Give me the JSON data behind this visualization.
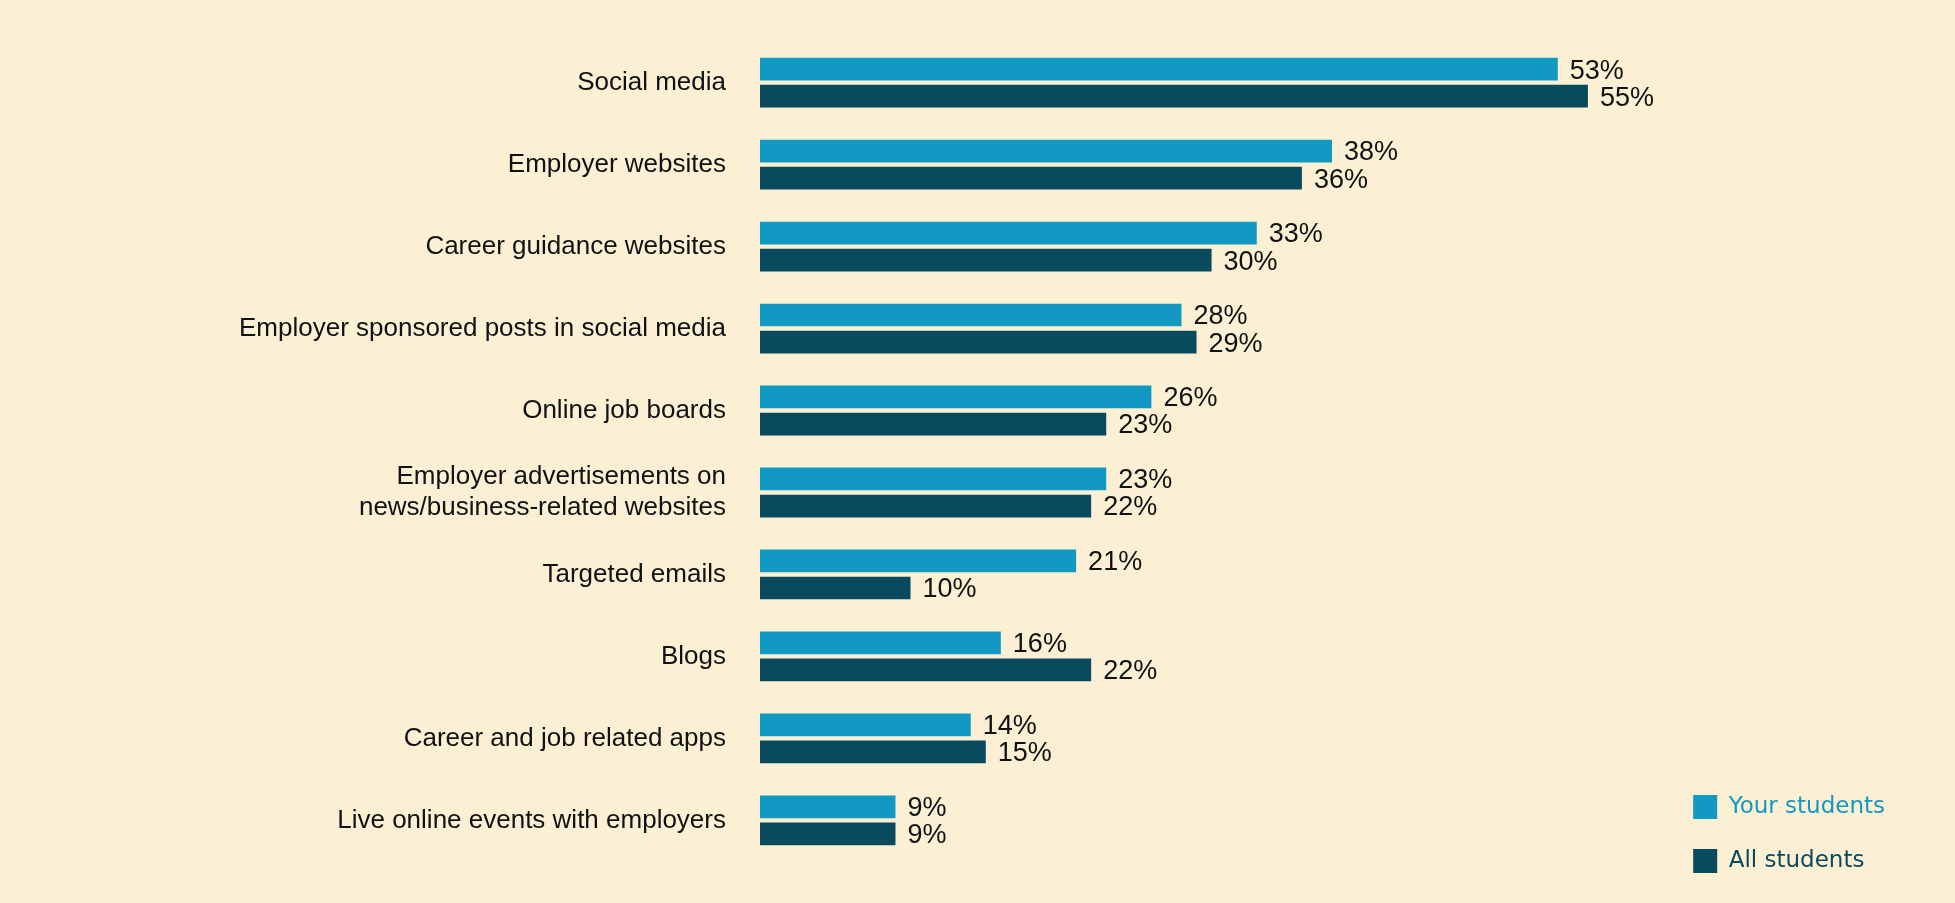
{
  "chart_data": {
    "type": "bar",
    "orientation": "horizontal",
    "categories": [
      "Social media",
      "Employer websites",
      "Career guidance websites",
      "Employer sponsored posts in social media",
      "Online job boards",
      "Employer advertisements on news/business-related websites",
      "Targeted emails",
      "Blogs",
      "Career and job related apps",
      "Live online events with employers"
    ],
    "series": [
      {
        "name": "Your students",
        "color": "#1199c4",
        "values": [
          53,
          38,
          33,
          28,
          26,
          23,
          21,
          16,
          14,
          9
        ],
        "value_labels": [
          "53%",
          "38%",
          "33%",
          "28%",
          "26%",
          "23%",
          "21%",
          "16%",
          "14%",
          "9%"
        ]
      },
      {
        "name": "All students",
        "color": "#0a4a5e",
        "values": [
          55,
          36,
          30,
          29,
          23,
          22,
          10,
          22,
          15,
          9
        ],
        "value_labels": [
          "55%",
          "36%",
          "30%",
          "29%",
          "23%",
          "22%",
          "10%",
          "22%",
          "15%",
          "9%"
        ]
      }
    ],
    "tick_labels": "y",
    "legend": "bottom right"
  }
}
